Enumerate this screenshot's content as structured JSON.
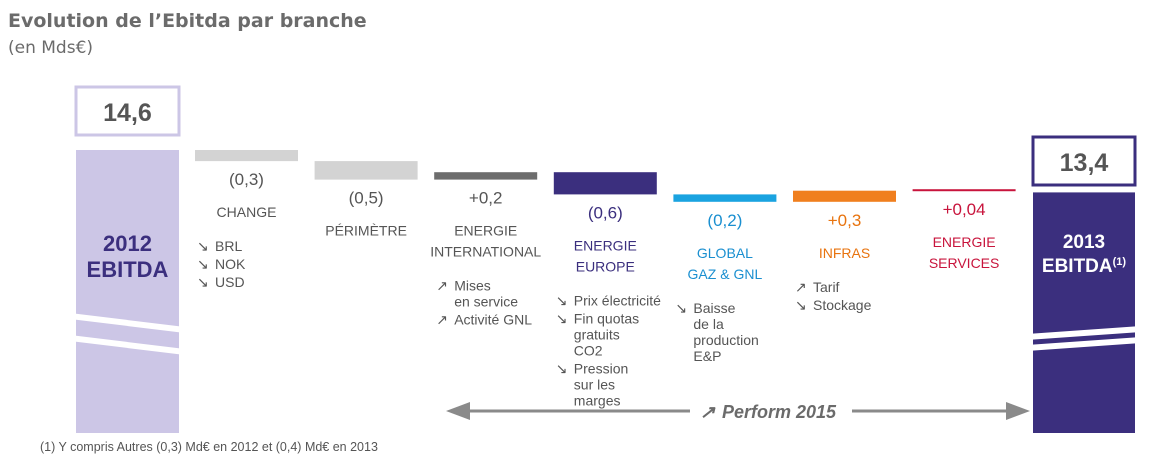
{
  "title": "Evolution de l’Ebitda par branche",
  "subtitle": "(en Mds€)",
  "footnote": "(1)  Y compris Autres (0,3) Md€ en 2012 et (0,4) Md€ en 2013",
  "perform": {
    "arrow": "↗",
    "label": "Perform 2015"
  },
  "chart_data": {
    "type": "bar",
    "subtype": "waterfall",
    "categories": [
      "2012 EBITDA",
      "CHANGE",
      "PÉRIMÈTRE",
      "ENERGIE INTERNATIONAL",
      "ENERGIE EUROPE",
      "GLOBAL GAZ & GNL",
      "INFRAS",
      "ENERGIE SERVICES",
      "2013 EBITDA(1)"
    ],
    "values": [
      14.6,
      -0.3,
      -0.5,
      0.2,
      -0.6,
      -0.2,
      0.3,
      0.04,
      13.4
    ],
    "start": {
      "value": 14.6,
      "value_label": "14,6",
      "label_lines": [
        "2012",
        "EBITDA"
      ],
      "sup": "",
      "color": "#ccc6e6",
      "text_color": "#3b2f7e"
    },
    "end": {
      "value": 13.4,
      "value_label": "13,4",
      "label_lines": [
        "2013",
        "EBITDA"
      ],
      "sup": "(1)",
      "color": "#3b2f7e",
      "text_color": "#ffffff"
    },
    "steps": [
      {
        "value": -0.3,
        "value_label": "(0,3)",
        "label_lines": [
          "CHANGE"
        ],
        "color": "#d3d3d3",
        "label_color": "#555555",
        "value_color": "#555555",
        "details": [
          {
            "arrow": "↘",
            "lines": [
              "BRL"
            ]
          },
          {
            "arrow": "↘",
            "lines": [
              "NOK"
            ]
          },
          {
            "arrow": "↘",
            "lines": [
              "USD"
            ]
          }
        ]
      },
      {
        "value": -0.5,
        "value_label": "(0,5)",
        "label_lines": [
          "PÉRIMÈTRE"
        ],
        "color": "#d3d3d3",
        "label_color": "#555555",
        "value_color": "#555555",
        "details": []
      },
      {
        "value": 0.2,
        "value_label": "+0,2",
        "label_lines": [
          "ENERGIE",
          "INTERNATIONAL"
        ],
        "color": "#6d6d6d",
        "label_color": "#555555",
        "value_color": "#555555",
        "details": [
          {
            "arrow": "↗",
            "lines": [
              "Mises",
              "en service"
            ]
          },
          {
            "arrow": "↗",
            "lines": [
              "Activité GNL"
            ]
          }
        ]
      },
      {
        "value": -0.6,
        "value_label": "(0,6)",
        "label_lines": [
          "ENERGIE",
          "EUROPE"
        ],
        "color": "#3b2f7e",
        "label_color": "#3b2f7e",
        "value_color": "#3b2f7e",
        "details": [
          {
            "arrow": "↘",
            "lines": [
              "Prix électricité"
            ]
          },
          {
            "arrow": "↘",
            "lines": [
              "Fin quotas",
              "gratuits",
              "CO2"
            ]
          },
          {
            "arrow": "↘",
            "lines": [
              "Pression",
              "sur les",
              "marges"
            ]
          }
        ]
      },
      {
        "value": -0.2,
        "value_label": "(0,2)",
        "label_lines": [
          "GLOBAL",
          "GAZ & GNL"
        ],
        "color": "#1aa3e0",
        "label_color": "#1a8fd0",
        "value_color": "#1a8fd0",
        "details": [
          {
            "arrow": "↘",
            "lines": [
              "Baisse",
              "de la",
              "production",
              "E&P"
            ]
          }
        ]
      },
      {
        "value": 0.3,
        "value_label": "+0,3",
        "label_lines": [
          "INFRAS"
        ],
        "color": "#f07f1e",
        "label_color": "#e8730e",
        "value_color": "#e8730e",
        "details": [
          {
            "arrow": "↗",
            "lines": [
              "Tarif"
            ]
          },
          {
            "arrow": "↘",
            "lines": [
              "Stockage"
            ]
          }
        ]
      },
      {
        "value": 0.04,
        "value_label": "+0,04",
        "label_lines": [
          "ENERGIE",
          "SERVICES"
        ],
        "color": "#c8143c",
        "label_color": "#c8143c",
        "value_color": "#c8143c",
        "details": []
      }
    ]
  }
}
